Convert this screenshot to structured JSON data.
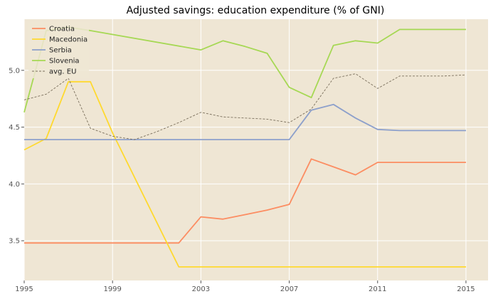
{
  "chart_data": {
    "type": "line",
    "title": "Adjusted savings: education expenditure (% of GNI)",
    "xlabel": "",
    "ylabel": "",
    "xlim": [
      1995,
      2016
    ],
    "ylim": [
      3.15,
      5.45
    ],
    "x_ticks": [
      1995,
      1999,
      2003,
      2007,
      2011,
      2015
    ],
    "x_tick_labels": [
      "1995",
      "1999",
      "2003",
      "2007",
      "2011",
      "2015"
    ],
    "y_ticks": [
      3.5,
      4.0,
      4.5,
      5.0
    ],
    "y_tick_labels": [
      "3.5",
      "4.0",
      "4.5",
      "5.0"
    ],
    "grid": true,
    "legend_position": "top-left",
    "background_color": "#efe6d4",
    "grid_color": "#ffffff",
    "series": [
      {
        "name": "Croatia",
        "color": "#fc8d62",
        "dash": "solid",
        "points": [
          [
            1995,
            3.48
          ],
          [
            1996,
            3.48
          ],
          [
            1997,
            3.48
          ],
          [
            1998,
            3.48
          ],
          [
            1999,
            3.48
          ],
          [
            2000,
            3.48
          ],
          [
            2001,
            3.48
          ],
          [
            2002,
            3.48
          ],
          [
            2003,
            3.71
          ],
          [
            2004,
            3.69
          ],
          [
            2005,
            3.73
          ],
          [
            2006,
            3.77
          ],
          [
            2007,
            3.82
          ],
          [
            2008,
            4.22
          ],
          [
            2009,
            4.15
          ],
          [
            2010,
            4.08
          ],
          [
            2011,
            4.19
          ],
          [
            2012,
            4.19
          ],
          [
            2013,
            4.19
          ],
          [
            2014,
            4.19
          ],
          [
            2015,
            4.19
          ]
        ]
      },
      {
        "name": "Macedonia",
        "color": "#ffd92f",
        "dash": "solid",
        "points": [
          [
            1995,
            4.3
          ],
          [
            1996,
            4.4
          ],
          [
            1997,
            4.9
          ],
          [
            1998,
            4.9
          ],
          [
            1999,
            4.45
          ],
          [
            2002,
            3.27
          ],
          [
            2003,
            3.27
          ],
          [
            2004,
            3.27
          ],
          [
            2005,
            3.27
          ],
          [
            2006,
            3.27
          ],
          [
            2007,
            3.27
          ],
          [
            2008,
            3.27
          ],
          [
            2009,
            3.27
          ],
          [
            2010,
            3.27
          ],
          [
            2011,
            3.27
          ],
          [
            2012,
            3.27
          ],
          [
            2013,
            3.27
          ],
          [
            2014,
            3.27
          ],
          [
            2015,
            3.27
          ]
        ]
      },
      {
        "name": "Serbia",
        "color": "#8da0cb",
        "dash": "solid",
        "points": [
          [
            1995,
            4.39
          ],
          [
            1996,
            4.39
          ],
          [
            1997,
            4.39
          ],
          [
            1998,
            4.39
          ],
          [
            1999,
            4.39
          ],
          [
            2000,
            4.39
          ],
          [
            2001,
            4.39
          ],
          [
            2002,
            4.39
          ],
          [
            2003,
            4.39
          ],
          [
            2004,
            4.39
          ],
          [
            2005,
            4.39
          ],
          [
            2006,
            4.39
          ],
          [
            2007,
            4.39
          ],
          [
            2008,
            4.65
          ],
          [
            2009,
            4.7
          ],
          [
            2010,
            4.58
          ],
          [
            2011,
            4.48
          ],
          [
            2012,
            4.47
          ],
          [
            2013,
            4.47
          ],
          [
            2014,
            4.47
          ],
          [
            2015,
            4.47
          ]
        ]
      },
      {
        "name": "Slovenia",
        "color": "#a6d854",
        "dash": "solid",
        "points": [
          [
            1995,
            4.63
          ],
          [
            1996,
            5.35
          ],
          [
            1997,
            5.38
          ],
          [
            1998,
            5.35
          ],
          [
            2003,
            5.18
          ],
          [
            2004,
            5.26
          ],
          [
            2005,
            5.21
          ],
          [
            2006,
            5.15
          ],
          [
            2007,
            4.85
          ],
          [
            2008,
            4.76
          ],
          [
            2009,
            5.22
          ],
          [
            2010,
            5.26
          ],
          [
            2011,
            5.24
          ],
          [
            2012,
            5.36
          ],
          [
            2013,
            5.36
          ],
          [
            2014,
            5.36
          ],
          [
            2015,
            5.36
          ]
        ]
      },
      {
        "name": "avg. EU",
        "color": "#7a6f5c",
        "dash": "dashed",
        "points": [
          [
            1995,
            4.74
          ],
          [
            1996,
            4.79
          ],
          [
            1997,
            4.93
          ],
          [
            1998,
            4.49
          ],
          [
            1999,
            4.42
          ],
          [
            2000,
            4.39
          ],
          [
            2001,
            4.46
          ],
          [
            2002,
            4.54
          ],
          [
            2003,
            4.63
          ],
          [
            2004,
            4.59
          ],
          [
            2005,
            4.58
          ],
          [
            2006,
            4.57
          ],
          [
            2007,
            4.54
          ],
          [
            2008,
            4.66
          ],
          [
            2009,
            4.93
          ],
          [
            2010,
            4.97
          ],
          [
            2011,
            4.84
          ],
          [
            2012,
            4.95
          ],
          [
            2013,
            4.95
          ],
          [
            2014,
            4.95
          ],
          [
            2015,
            4.96
          ]
        ]
      }
    ]
  }
}
